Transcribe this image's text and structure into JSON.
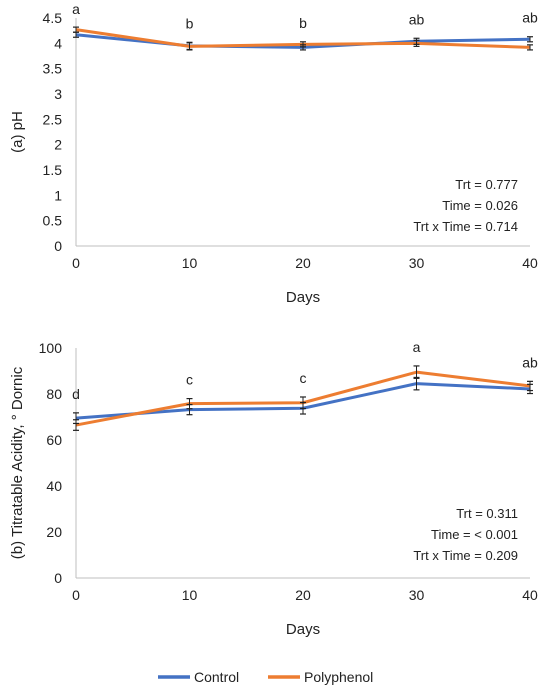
{
  "chart_data": [
    {
      "type": "line",
      "xlabel": "Days",
      "ylabel": "(a) pH",
      "x": [
        0,
        10,
        20,
        30,
        40
      ],
      "xlim": [
        0,
        40
      ],
      "xticks": [
        "0",
        "10",
        "20",
        "30",
        "40"
      ],
      "ylim": [
        0,
        4.5
      ],
      "yticks": [
        "0",
        "0.5",
        "1",
        "1.5",
        "2",
        "2.5",
        "3",
        "3.5",
        "4",
        "4.5"
      ],
      "series": [
        {
          "name": "Control",
          "color": "#4472C4",
          "values": [
            4.17,
            3.95,
            3.92,
            4.04,
            4.08
          ],
          "err": [
            0.05,
            0.07,
            0.05,
            0.06,
            0.05
          ]
        },
        {
          "name": "Polyphenol",
          "color": "#ED7D31",
          "values": [
            4.27,
            3.94,
            3.98,
            4.0,
            3.92
          ],
          "err": [
            0.05,
            0.07,
            0.05,
            0.06,
            0.05
          ]
        }
      ],
      "letters": [
        "a",
        "b",
        "b",
        "ab",
        "ab"
      ],
      "stats": [
        "Trt = 0.777",
        "Time = 0.026",
        "Trt x Time = 0.714"
      ],
      "grid": false
    },
    {
      "type": "line",
      "xlabel": "Days",
      "ylabel": "(b) Titratable Acidity, ° Dornic",
      "x": [
        0,
        10,
        20,
        30,
        40
      ],
      "xlim": [
        0,
        40
      ],
      "xticks": [
        "0",
        "10",
        "20",
        "30",
        "40"
      ],
      "ylim": [
        0,
        100
      ],
      "yticks": [
        "0",
        "20",
        "40",
        "60",
        "80",
        "100"
      ],
      "series": [
        {
          "name": "Control",
          "color": "#4472C4",
          "values": [
            69.5,
            73.2,
            73.8,
            84.5,
            82.2
          ],
          "err": [
            2.3,
            2.2,
            2.5,
            2.7,
            2.0
          ]
        },
        {
          "name": "Polyphenol",
          "color": "#ED7D31",
          "values": [
            66.5,
            75.8,
            76.2,
            89.5,
            83.5
          ],
          "err": [
            2.3,
            2.2,
            2.5,
            2.7,
            2.0
          ]
        }
      ],
      "letters": [
        "d",
        "c",
        "c",
        "a",
        "ab"
      ],
      "stats": [
        "Trt = 0.311",
        "Time = < 0.001",
        "Trt x Time = 0.209"
      ],
      "grid": false
    }
  ],
  "legend": {
    "position": "bottom",
    "items": [
      {
        "label": "Control",
        "color": "#4472C4"
      },
      {
        "label": "Polyphenol",
        "color": "#ED7D31"
      }
    ]
  }
}
